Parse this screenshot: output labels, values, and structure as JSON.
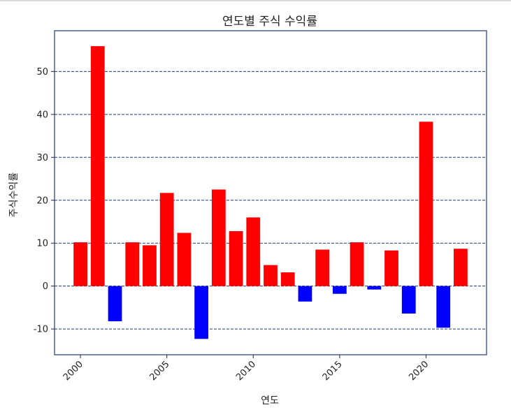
{
  "chart_data": {
    "type": "bar",
    "title": "연도별 주식 수익률",
    "xlabel": "연도",
    "ylabel": "주식수익률",
    "x": [
      2000,
      2001,
      2002,
      2003,
      2004,
      2005,
      2006,
      2007,
      2008,
      2009,
      2010,
      2011,
      2012,
      2013,
      2014,
      2015,
      2016,
      2017,
      2018,
      2019,
      2020,
      2021,
      2022
    ],
    "values": [
      10.2,
      55.9,
      -8.2,
      10.2,
      9.5,
      21.7,
      12.4,
      -12.3,
      22.5,
      12.8,
      16.0,
      4.9,
      3.2,
      -3.6,
      8.5,
      -1.8,
      10.2,
      -0.8,
      8.3,
      -6.4,
      38.3,
      -9.7,
      8.7
    ],
    "xticks": [
      "2000",
      "2005",
      "2010",
      "2015",
      "2020"
    ],
    "yticks": [
      "-10",
      "0",
      "10",
      "20",
      "30",
      "40",
      "50"
    ],
    "xlim": [
      1998.5,
      2023.5
    ],
    "ylim": [
      -16,
      59.5
    ],
    "grid": "horizontal dashed",
    "colors": {
      "positive": "#ff0000",
      "negative": "#0000ff",
      "grid": "#1f3a7a",
      "frame": "#1f3a7a"
    }
  }
}
